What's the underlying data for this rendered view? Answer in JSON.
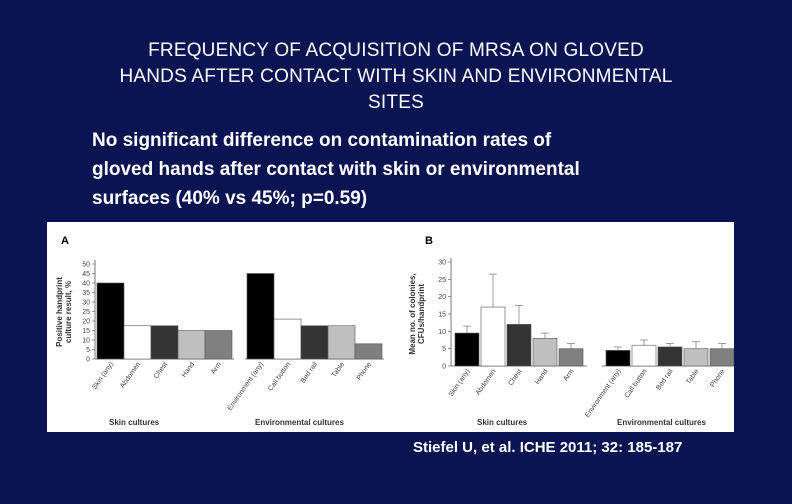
{
  "slide": {
    "title_lines": [
      "FREQUENCY OF ACQUISITION OF MRSA ON GLOVED",
      "HANDS AFTER CONTACT WITH SKIN AND ENVIRONMENTAL",
      "SITES"
    ],
    "bullet_lines": [
      "No significant difference on contamination rates of",
      "gloved hands after contact with skin or environmental",
      "surfaces (40% vs 45%; p=0.59)"
    ],
    "citation": "Stiefel U, et al.  ICHE 2011; 32: 185-187",
    "background_color": "#0b1452",
    "text_color": "#ffffff"
  },
  "chart_data": [
    {
      "type": "bar",
      "panel_label": "A",
      "ylabel": "Positive handprint culture result, %",
      "ylim": [
        0,
        50
      ],
      "yticks": [
        "0",
        "5",
        "10",
        "15",
        "20",
        "25",
        "30",
        "35",
        "40",
        "45",
        "50"
      ],
      "categories": [
        "Skin (any)",
        "Abdomen",
        "Chest",
        "Hand",
        "Arm",
        "Environment (any)",
        "Call button",
        "Bed rail",
        "Table",
        "Phone"
      ],
      "values": [
        40,
        17.5,
        17.5,
        15,
        15,
        45,
        21,
        17.5,
        17.5,
        8
      ],
      "colors": [
        "#000000",
        "#ffffff",
        "#333333",
        "#bfbfbf",
        "#808080",
        "#000000",
        "#ffffff",
        "#333333",
        "#bfbfbf",
        "#808080"
      ],
      "group_labels": [
        "Skin cultures",
        "Environmental cultures"
      ],
      "grid": false
    },
    {
      "type": "bar",
      "panel_label": "B",
      "ylabel": "Mean no. of colonies, CFUs/handprint",
      "ylim": [
        0,
        30
      ],
      "yticks": [
        "0",
        "5",
        "10",
        "15",
        "20",
        "25",
        "30"
      ],
      "categories": [
        "Skin (any)",
        "Abdomen",
        "Chest",
        "Hand",
        "Arm",
        "Environment (any)",
        "Call button",
        "Bed rail",
        "Table",
        "Phone"
      ],
      "values": [
        9.5,
        17,
        12,
        8,
        5,
        4.5,
        6,
        5.5,
        5,
        5
      ],
      "error_upper": [
        11.5,
        26.5,
        17.5,
        9.5,
        6.5,
        5.5,
        7.5,
        6.5,
        7,
        6.5
      ],
      "colors": [
        "#000000",
        "#ffffff",
        "#333333",
        "#bfbfbf",
        "#808080",
        "#000000",
        "#ffffff",
        "#333333",
        "#bfbfbf",
        "#808080"
      ],
      "group_labels": [
        "Skin cultures",
        "Environmental cultures"
      ],
      "grid": false
    }
  ]
}
